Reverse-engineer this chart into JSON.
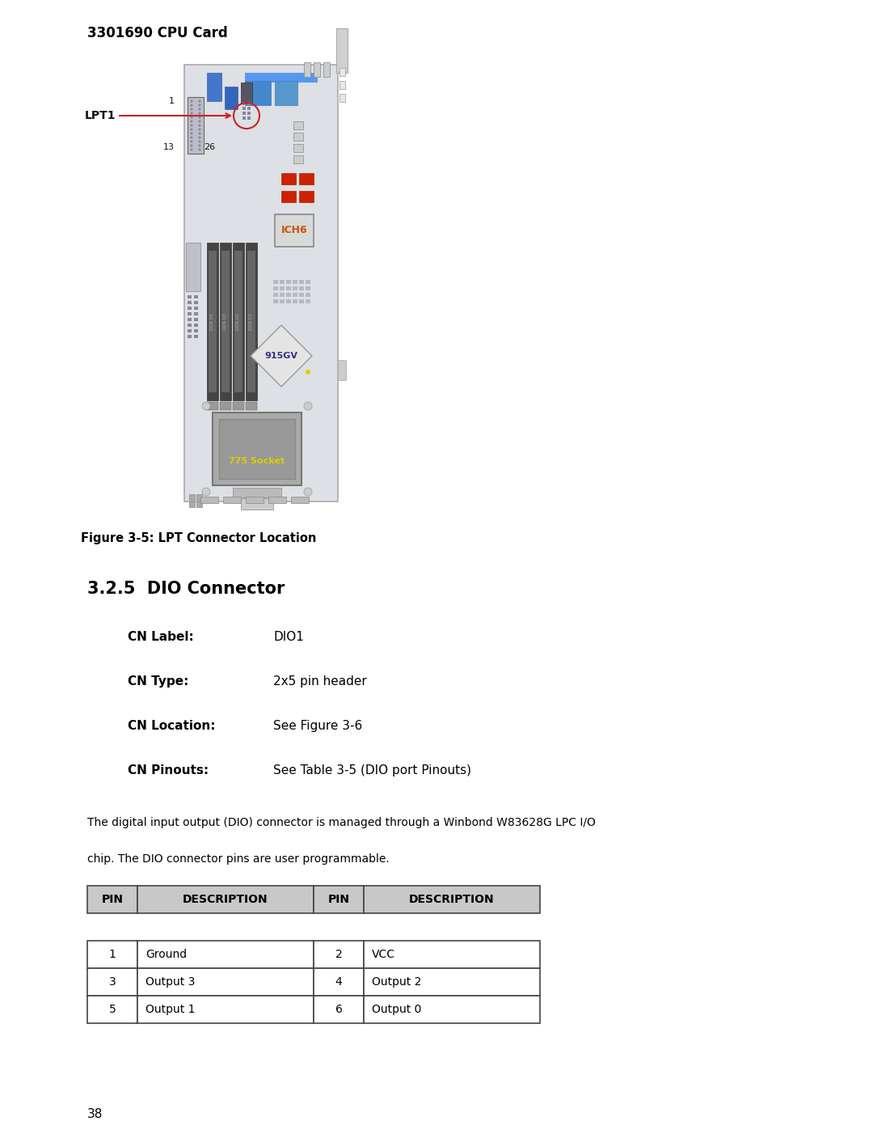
{
  "page_title": "3301690 CPU Card",
  "figure_caption": "Figure 3-5: LPT Connector Location",
  "section_title": "3.2.5  DIO Connector",
  "cn_label_key": "CN Label:",
  "cn_label_val": "DIO1",
  "cn_type_key": "CN Type:",
  "cn_type_val": "2x5 pin header",
  "cn_location_key": "CN Location:",
  "cn_location_val": "See Figure 3-6",
  "cn_pinouts_key": "CN Pinouts:",
  "cn_pinouts_val": "See Table 3-5 (DIO port Pinouts)",
  "body_text_line1": "The digital input output (DIO) connector is managed through a Winbond W83628G LPC I/O",
  "body_text_line2": "chip. The DIO connector pins are user programmable.",
  "table_headers": [
    "PIN",
    "DESCRIPTION",
    "PIN",
    "DESCRIPTION"
  ],
  "table_rows": [
    [
      "1",
      "Ground",
      "2",
      "VCC"
    ],
    [
      "3",
      "Output 3",
      "4",
      "Output 2"
    ],
    [
      "5",
      "Output 1",
      "6",
      "Output 0"
    ]
  ],
  "page_number": "38",
  "bg_color": "#ffffff",
  "text_color": "#000000",
  "table_header_bg": "#c8c8c8",
  "table_border_color": "#444444",
  "board_bg": "#e8eaec",
  "board_border": "#999999"
}
